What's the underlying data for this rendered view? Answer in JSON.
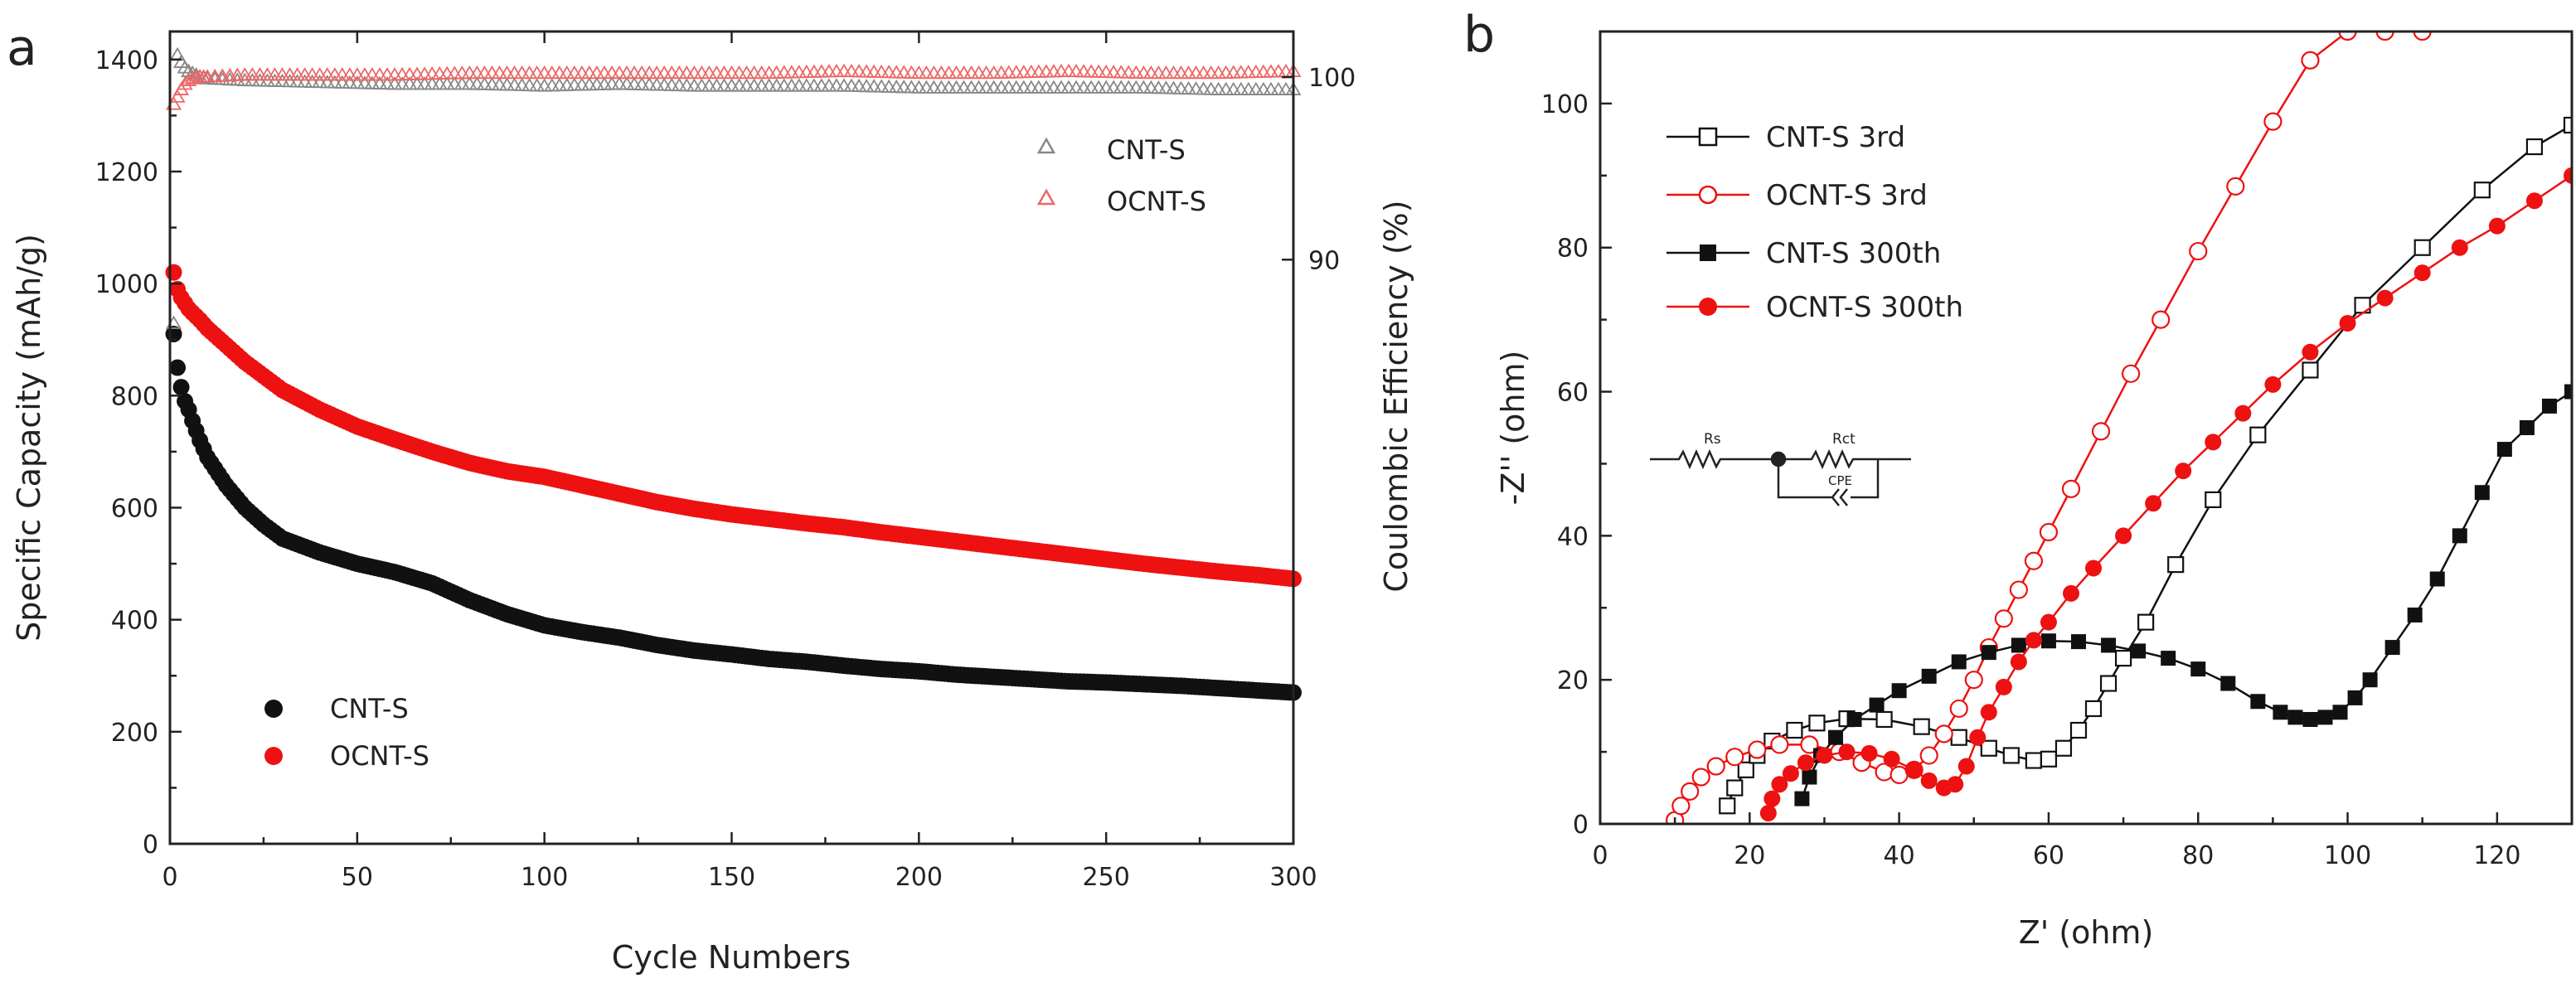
{
  "figure": {
    "panel_a_letter": "a",
    "panel_b_letter": "b",
    "colors": {
      "black_series": "#111111",
      "red_series": "#ee1111",
      "axis": "#222222"
    }
  },
  "chart_data": [
    {
      "type": "scatter",
      "panel": "a",
      "xlabel": "Cycle Numbers",
      "ylabel": "Specific Capacity (mAh/g)",
      "ylabel_right": "Coulombic Efficiency (%)",
      "xlim": [
        0,
        300
      ],
      "ylim": [
        0,
        1450
      ],
      "ylim_right": [
        58,
        102.5
      ],
      "xticks": [
        0,
        50,
        100,
        150,
        200,
        250,
        300
      ],
      "yticks": [
        0,
        200,
        400,
        600,
        800,
        1000,
        1200,
        1400
      ],
      "yticks_right": [
        90,
        100
      ],
      "legend_capacity": [
        "CNT-S",
        "OCNT-S"
      ],
      "legend_efficiency": [
        "CNT-S",
        "OCNT-S"
      ],
      "series": [
        {
          "name": "CNT-S",
          "axis": "left",
          "marker": "filled-circle",
          "color": "#111111",
          "x": [
            1,
            2,
            3,
            4,
            5,
            6,
            8,
            10,
            15,
            20,
            25,
            30,
            40,
            50,
            60,
            70,
            80,
            90,
            100,
            110,
            120,
            130,
            140,
            150,
            160,
            170,
            180,
            190,
            200,
            210,
            220,
            230,
            240,
            250,
            260,
            270,
            280,
            290,
            300
          ],
          "values": [
            910,
            850,
            815,
            790,
            775,
            755,
            720,
            690,
            640,
            600,
            570,
            545,
            520,
            500,
            485,
            465,
            435,
            410,
            390,
            378,
            368,
            355,
            345,
            338,
            330,
            325,
            318,
            312,
            308,
            302,
            298,
            294,
            290,
            288,
            285,
            282,
            278,
            274,
            270
          ]
        },
        {
          "name": "OCNT-S",
          "axis": "left",
          "marker": "filled-circle",
          "color": "#ee1111",
          "x": [
            1,
            2,
            3,
            4,
            5,
            6,
            8,
            10,
            15,
            20,
            25,
            30,
            40,
            50,
            60,
            70,
            80,
            90,
            100,
            110,
            120,
            130,
            140,
            150,
            160,
            170,
            180,
            190,
            200,
            210,
            220,
            230,
            240,
            250,
            260,
            270,
            280,
            290,
            300
          ],
          "values": [
            1020,
            990,
            975,
            965,
            955,
            948,
            935,
            920,
            890,
            860,
            835,
            810,
            775,
            745,
            722,
            700,
            680,
            665,
            655,
            640,
            625,
            610,
            598,
            588,
            580,
            572,
            565,
            556,
            548,
            540,
            532,
            524,
            516,
            508,
            500,
            493,
            486,
            480,
            473
          ]
        },
        {
          "name": "CNT-S",
          "axis": "right",
          "marker": "open-triangle",
          "color": "#888888",
          "x": [
            1,
            2,
            3,
            4,
            5,
            6,
            8,
            10,
            20,
            40,
            60,
            80,
            100,
            120,
            140,
            160,
            180,
            200,
            220,
            240,
            260,
            280,
            300
          ],
          "values": [
            86.5,
            101.2,
            100.8,
            100.5,
            100.3,
            100.2,
            100.0,
            99.9,
            99.8,
            99.7,
            99.6,
            99.6,
            99.5,
            99.6,
            99.5,
            99.5,
            99.5,
            99.4,
            99.4,
            99.4,
            99.4,
            99.3,
            99.3
          ]
        },
        {
          "name": "OCNT-S",
          "axis": "right",
          "marker": "open-triangle",
          "color": "#ee6666",
          "x": [
            1,
            2,
            3,
            4,
            5,
            6,
            8,
            10,
            20,
            40,
            60,
            80,
            100,
            120,
            140,
            160,
            180,
            200,
            220,
            240,
            260,
            280,
            300
          ],
          "values": [
            98.5,
            98.9,
            99.3,
            99.6,
            99.8,
            99.9,
            100.0,
            100.0,
            100.1,
            100.1,
            100.1,
            100.2,
            100.2,
            100.2,
            100.2,
            100.2,
            100.3,
            100.2,
            100.2,
            100.3,
            100.2,
            100.2,
            100.3
          ]
        }
      ]
    },
    {
      "type": "line",
      "panel": "b",
      "xlabel": "Z' (ohm)",
      "ylabel": "-Z'' (ohm)",
      "xlim": [
        0,
        130
      ],
      "ylim": [
        0,
        110
      ],
      "xticks": [
        0,
        20,
        40,
        60,
        80,
        100,
        120
      ],
      "yticks": [
        0,
        20,
        40,
        60,
        80,
        100
      ],
      "circuit_labels": {
        "rs": "Rs",
        "rct": "Rct",
        "cpe": "CPE"
      },
      "series": [
        {
          "name": "CNT-S 3rd",
          "marker": "open-square",
          "color": "#111111",
          "x": [
            17,
            18,
            19.5,
            21,
            23,
            26,
            29,
            33,
            38,
            43,
            48,
            52,
            55,
            58,
            60,
            62,
            64,
            66,
            68,
            70,
            73,
            77,
            82,
            88,
            95,
            102,
            110,
            118,
            125,
            130
          ],
          "y": [
            2.5,
            5,
            7.5,
            9.5,
            11.5,
            13,
            14,
            14.6,
            14.5,
            13.5,
            12,
            10.5,
            9.5,
            8.8,
            9,
            10.5,
            13,
            16,
            19.5,
            23,
            28,
            36,
            45,
            54,
            63,
            72,
            80,
            88,
            94,
            97
          ]
        },
        {
          "name": "OCNT-S 3rd",
          "marker": "open-circle",
          "color": "#ee1111",
          "x": [
            10,
            10.8,
            12,
            13.5,
            15.5,
            18,
            21,
            24,
            28,
            32,
            35,
            38,
            40,
            42,
            44,
            46,
            48,
            50,
            52,
            54,
            56,
            58,
            60,
            63,
            67,
            71,
            75,
            80,
            85,
            90,
            95,
            100,
            105,
            110
          ],
          "y": [
            0.5,
            2.5,
            4.5,
            6.5,
            8,
            9.3,
            10.3,
            11,
            11,
            10,
            8.5,
            7.2,
            6.8,
            7.5,
            9.5,
            12.5,
            16,
            20,
            24.5,
            28.5,
            32.5,
            36.5,
            40.5,
            46.5,
            54.5,
            62.5,
            70,
            79.5,
            88.5,
            97.5,
            106,
            110,
            110,
            110
          ]
        },
        {
          "name": "CNT-S 300th",
          "marker": "filled-square",
          "color": "#111111",
          "x": [
            27,
            28,
            29.5,
            31.5,
            34,
            37,
            40,
            44,
            48,
            52,
            56,
            60,
            64,
            68,
            72,
            76,
            80,
            84,
            88,
            91,
            93,
            95,
            97,
            99,
            101,
            103,
            106,
            109,
            112,
            115,
            118,
            121,
            124,
            127,
            130
          ],
          "y": [
            3.5,
            6.5,
            9.5,
            12,
            14.5,
            16.5,
            18.5,
            20.5,
            22.5,
            23.8,
            24.8,
            25.4,
            25.3,
            24.8,
            24,
            23,
            21.5,
            19.5,
            17,
            15.5,
            14.8,
            14.5,
            14.8,
            15.5,
            17.5,
            20,
            24.5,
            29,
            34,
            40,
            46,
            52,
            55,
            58,
            60
          ]
        },
        {
          "name": "OCNT-S 300th",
          "marker": "filled-circle",
          "color": "#ee1111",
          "x": [
            22.5,
            23,
            24,
            25.5,
            27.5,
            30,
            33,
            36,
            39,
            42,
            44,
            46,
            47.5,
            49,
            50.5,
            52,
            54,
            56,
            58,
            60,
            63,
            66,
            70,
            74,
            78,
            82,
            86,
            90,
            95,
            100,
            105,
            110,
            115,
            120,
            125,
            130
          ],
          "y": [
            1.5,
            3.5,
            5.5,
            7,
            8.5,
            9.5,
            10,
            9.8,
            9,
            7.5,
            6,
            5,
            5.5,
            8,
            12,
            15.5,
            19,
            22.5,
            25.5,
            28,
            32,
            35.5,
            40,
            44.5,
            49,
            53,
            57,
            61,
            65.5,
            69.5,
            73,
            76.5,
            80,
            83,
            86.5,
            90
          ]
        }
      ]
    }
  ]
}
